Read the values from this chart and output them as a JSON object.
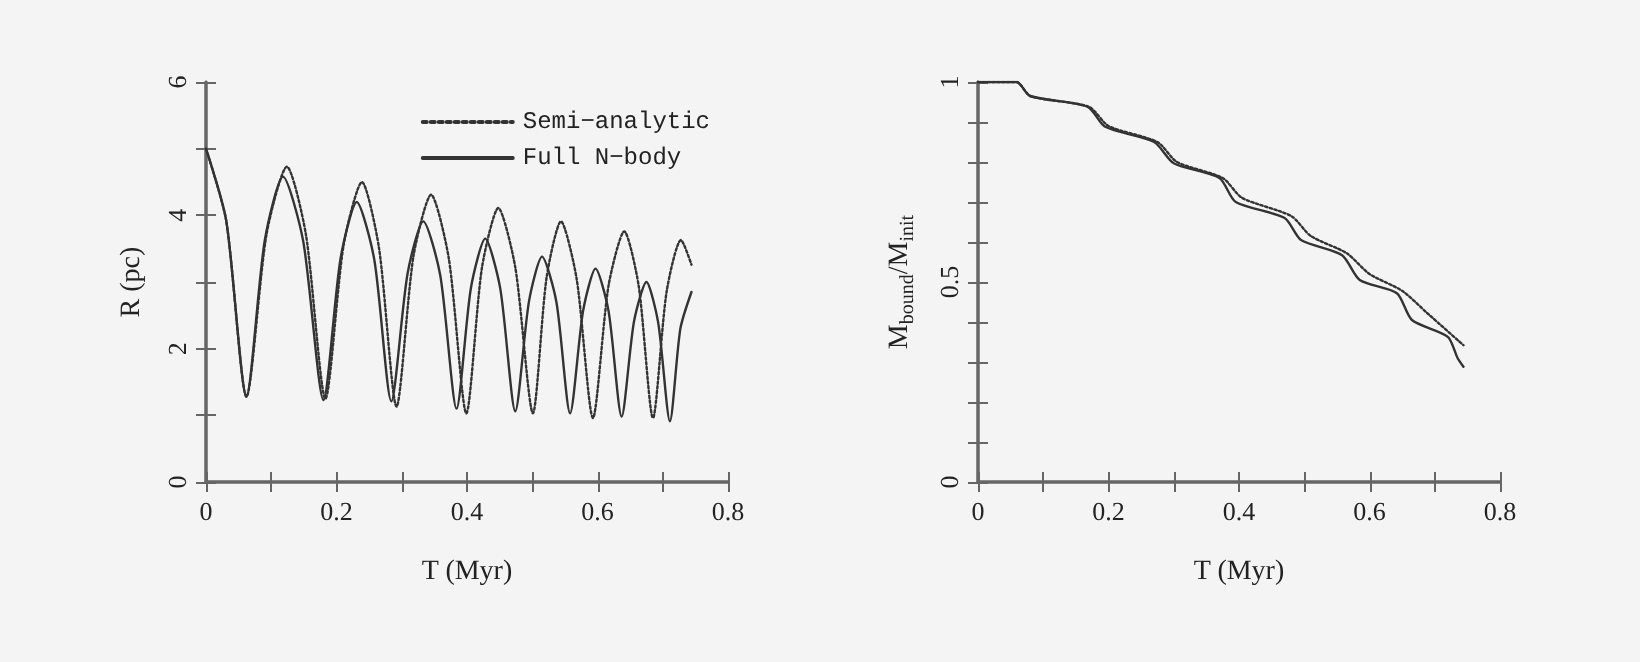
{
  "chart_data": [
    {
      "type": "line",
      "xlabel": "T (Myr)",
      "ylabel": "R (pc)",
      "xlim": [
        0,
        0.8
      ],
      "ylim": [
        0,
        6
      ],
      "xticks": [
        0,
        {
          "value": 0.1,
          "label": null
        },
        0.2,
        {
          "value": 0.3,
          "label": null
        },
        0.4,
        {
          "value": 0.5,
          "label": null
        },
        0.6,
        {
          "value": 0.7,
          "label": null
        },
        0.8
      ],
      "yticks": [
        0,
        {
          "value": 1,
          "label": null
        },
        2,
        {
          "value": 3,
          "label": null
        },
        4,
        {
          "value": 5,
          "label": null
        },
        6
      ],
      "legend": "top right",
      "marker": "none",
      "series": [
        {
          "name": "Semi−analytic",
          "color": "#333333",
          "line_style": "dotted",
          "x": [
            0,
            0.031,
            0.062,
            0.093,
            0.124,
            0.153,
            0.183,
            0.211,
            0.239,
            0.265,
            0.292,
            0.318,
            0.345,
            0.372,
            0.399,
            0.423,
            0.448,
            0.474,
            0.501,
            0.522,
            0.544,
            0.568,
            0.593,
            0.617,
            0.641,
            0.663,
            0.685,
            0.706,
            0.728,
            0.744
          ],
          "values": [
            5,
            3.92,
            1.28,
            3.73,
            4.73,
            3.72,
            1.25,
            3.56,
            4.5,
            3.52,
            1.13,
            3.39,
            4.31,
            3.36,
            1.03,
            3.22,
            4.11,
            3.22,
            1.03,
            3.07,
            3.91,
            3.05,
            0.96,
            2.95,
            3.76,
            2.95,
            0.96,
            2.86,
            3.63,
            3.26
          ]
        },
        {
          "name": "Full N−body",
          "color": "#333333",
          "line_style": "solid",
          "x": [
            0,
            0.031,
            0.062,
            0.09,
            0.118,
            0.149,
            0.18,
            0.206,
            0.231,
            0.258,
            0.284,
            0.309,
            0.333,
            0.359,
            0.384,
            0.406,
            0.428,
            0.451,
            0.474,
            0.495,
            0.515,
            0.537,
            0.558,
            0.578,
            0.597,
            0.617,
            0.637,
            0.656,
            0.675,
            0.693,
            0.711,
            0.727,
            0.744
          ],
          "values": [
            5,
            3.92,
            1.28,
            3.62,
            4.58,
            3.61,
            1.23,
            3.34,
            4.2,
            3.33,
            1.21,
            3.13,
            3.91,
            3.1,
            1.1,
            2.91,
            3.65,
            2.9,
            1.06,
            2.71,
            3.38,
            2.7,
            1.03,
            2.57,
            3.2,
            2.56,
            0.98,
            2.41,
            3.0,
            2.39,
            0.91,
            2.3,
            2.85
          ]
        }
      ]
    },
    {
      "type": "line",
      "xlabel": "T (Myr)",
      "ylabel": "M$_{bound}$/M$_{init}$",
      "xlim": [
        0,
        0.8
      ],
      "ylim": [
        0,
        1
      ],
      "xticks": [
        0,
        {
          "value": 0.1,
          "label": null
        },
        0.2,
        {
          "value": 0.3,
          "label": null
        },
        0.4,
        {
          "value": 0.5,
          "label": null
        },
        0.6,
        {
          "value": 0.7,
          "label": null
        },
        0.8
      ],
      "yticks": [
        0,
        {
          "value": 0.1,
          "label": null
        },
        {
          "value": 0.2,
          "label": null
        },
        {
          "value": 0.3,
          "label": null
        },
        {
          "value": 0.4,
          "label": null
        },
        0.5,
        {
          "value": 0.6,
          "label": null
        },
        {
          "value": 0.7,
          "label": null
        },
        {
          "value": 0.8,
          "label": null
        },
        {
          "value": 0.9,
          "label": null
        },
        1
      ],
      "marker": "none",
      "series": [
        {
          "color": "#333333",
          "line_style": "dotted",
          "x": [
            0,
            0.059,
            0.08,
            0.17,
            0.2,
            0.275,
            0.305,
            0.375,
            0.405,
            0.48,
            0.51,
            0.565,
            0.6,
            0.65,
            0.69,
            0.744
          ],
          "values": [
            1,
            1,
            0.965,
            0.938,
            0.89,
            0.85,
            0.8,
            0.76,
            0.71,
            0.665,
            0.615,
            0.572,
            0.52,
            0.478,
            0.42,
            0.342
          ]
        },
        {
          "color": "#333333",
          "line_style": "solid",
          "x": [
            0,
            0.059,
            0.08,
            0.168,
            0.195,
            0.27,
            0.3,
            0.37,
            0.395,
            0.47,
            0.495,
            0.558,
            0.585,
            0.642,
            0.665,
            0.72,
            0.735,
            0.744
          ],
          "values": [
            1,
            1,
            0.965,
            0.938,
            0.888,
            0.85,
            0.797,
            0.76,
            0.7,
            0.66,
            0.605,
            0.567,
            0.505,
            0.472,
            0.405,
            0.363,
            0.31,
            0.288
          ]
        }
      ]
    }
  ]
}
